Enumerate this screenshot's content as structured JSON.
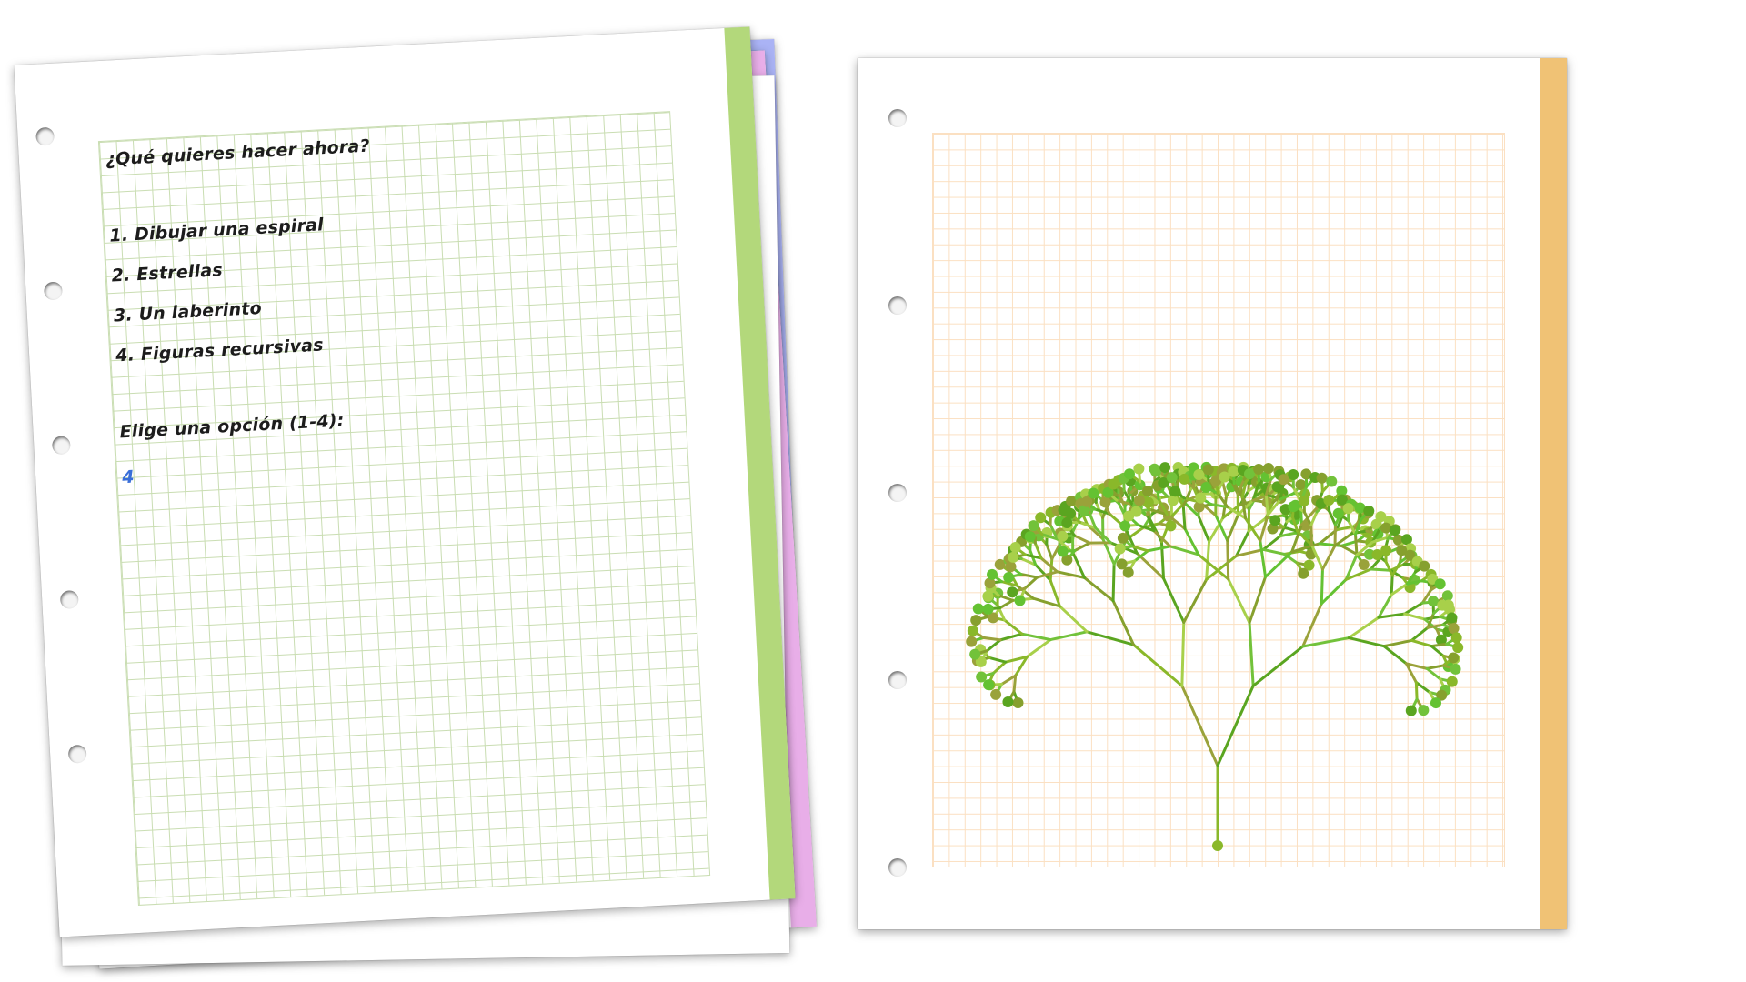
{
  "left_notebook": {
    "question": "¿Qué quieres hacer ahora?",
    "options": [
      "1. Dibujar una espiral",
      "2. Estrellas",
      "3. Un laberinto",
      "4. Figuras recursivas"
    ],
    "prompt": "Elige una opción (1-4):",
    "answer": "4"
  },
  "colors": {
    "tab_green": "#b3d87b",
    "tab_pink": "#e8aee8",
    "tab_blue": "#aab3f5",
    "tab_orange": "#f0c275",
    "grid_green": "#c9ddb2",
    "grid_orange": "#fbe0c2",
    "answer_blue": "#3a6fd8"
  },
  "drawing": {
    "type": "recursive-tree",
    "depth": 8,
    "leaf_colors": [
      "#5aa520",
      "#8ab82a",
      "#72c23a",
      "#9aa23a",
      "#a8d04a",
      "#64c232",
      "#86a02e"
    ]
  }
}
